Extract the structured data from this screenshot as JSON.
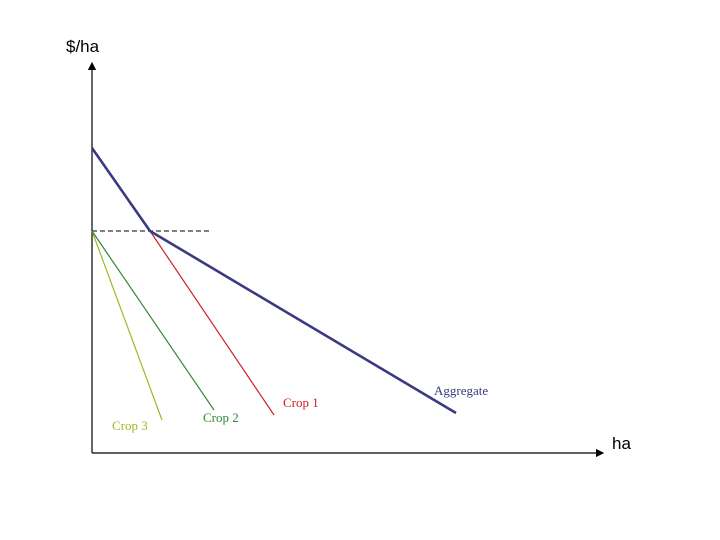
{
  "axes": {
    "y_label": "$/ha",
    "x_label": "ha"
  },
  "curves": [
    {
      "id": "crop-3",
      "label": "Crop 3",
      "color": "#99bb22"
    },
    {
      "id": "crop-2",
      "label": "Crop 2",
      "color": "#338833"
    },
    {
      "id": "crop-1",
      "label": "Crop 1",
      "color": "#cc2222"
    },
    {
      "id": "aggregate",
      "label": "Aggregate",
      "color": "#3a3a80"
    }
  ],
  "colors": {
    "axis": "#000000",
    "price_line": "#000000"
  }
}
